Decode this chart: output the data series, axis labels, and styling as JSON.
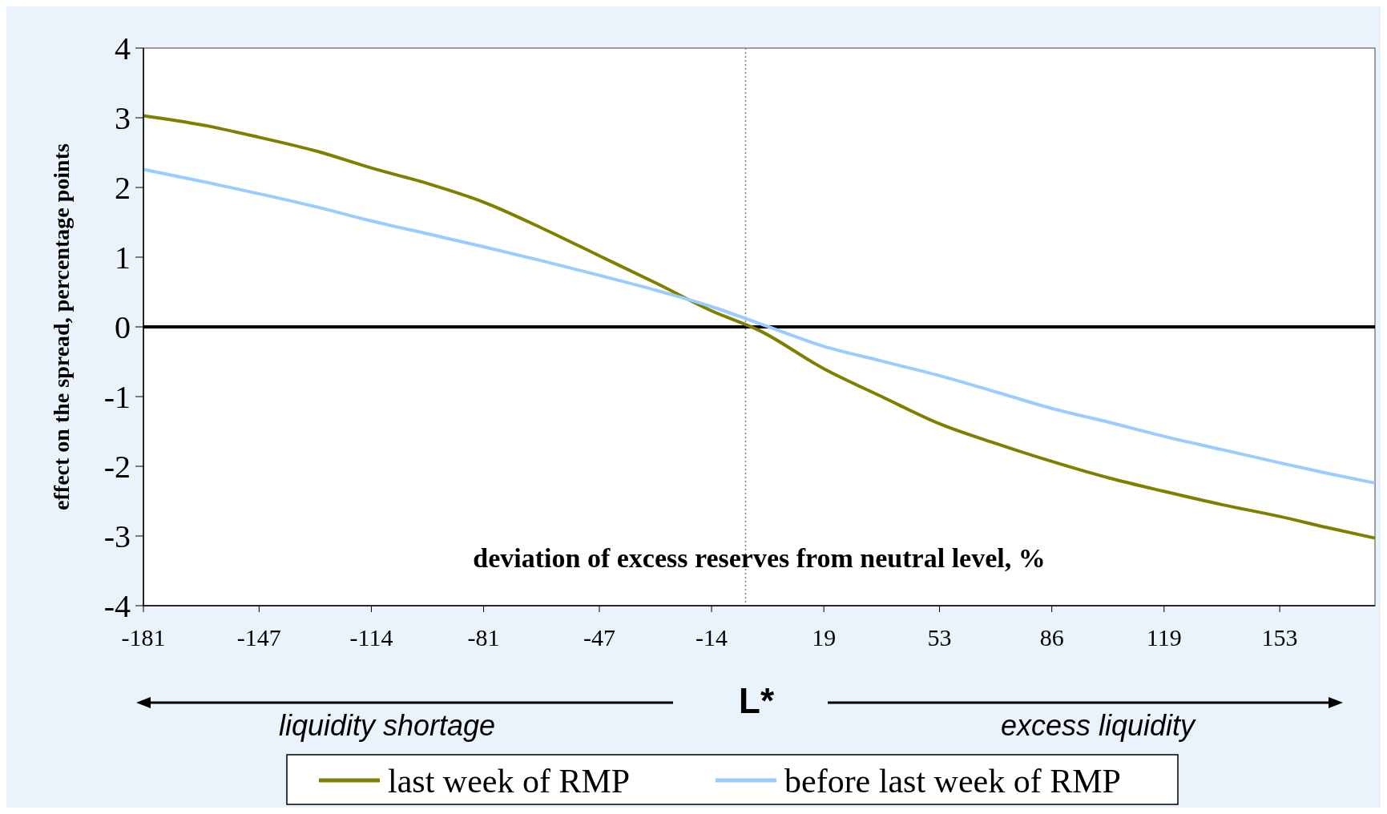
{
  "chart_data": {
    "type": "line",
    "xlabel": "deviation of excess reserves from neutral level, %",
    "ylabel": "effect on the spread, percentage points",
    "x": [
      -181,
      -164,
      -147,
      -130,
      -114,
      -97,
      -81,
      -64,
      -47,
      -30,
      -14,
      0,
      19,
      36,
      53,
      70,
      86,
      103,
      119,
      136,
      153,
      167,
      181
    ],
    "series": [
      {
        "name": "last week of RMP",
        "color": "#7f7f00",
        "values": [
          3.03,
          2.9,
          2.72,
          2.52,
          2.28,
          2.05,
          1.79,
          1.42,
          1.02,
          0.62,
          0.23,
          -0.05,
          -0.6,
          -1.0,
          -1.39,
          -1.68,
          -1.93,
          -2.17,
          -2.36,
          -2.55,
          -2.72,
          -2.88,
          -3.03
        ]
      },
      {
        "name": "before last week of RMP",
        "color": "#99ccff",
        "values": [
          2.26,
          2.09,
          1.91,
          1.72,
          1.52,
          1.33,
          1.15,
          0.95,
          0.74,
          0.52,
          0.29,
          0.05,
          -0.28,
          -0.49,
          -0.7,
          -0.94,
          -1.17,
          -1.37,
          -1.57,
          -1.76,
          -1.95,
          -2.1,
          -2.24
        ]
      }
    ],
    "xlim": [
      -181,
      181
    ],
    "xticks": [
      -181,
      -147,
      -114,
      -81,
      -47,
      -14,
      19,
      53,
      86,
      119,
      153
    ],
    "ylim": [
      -4,
      4
    ],
    "yticks": [
      -4,
      -3,
      -2,
      -1,
      0,
      1,
      2,
      3,
      4
    ],
    "ref_lines": [
      {
        "axis": "y",
        "value": 0,
        "color": "#000000",
        "line_style": "solid"
      },
      {
        "axis": "x",
        "value": -4,
        "color": "#808080",
        "line_style": "dotted"
      }
    ],
    "annotations": [
      "L*",
      "liquidity shortage",
      "excess liquidity"
    ],
    "grid": false,
    "legend": "bottom",
    "line_style": "solid"
  }
}
